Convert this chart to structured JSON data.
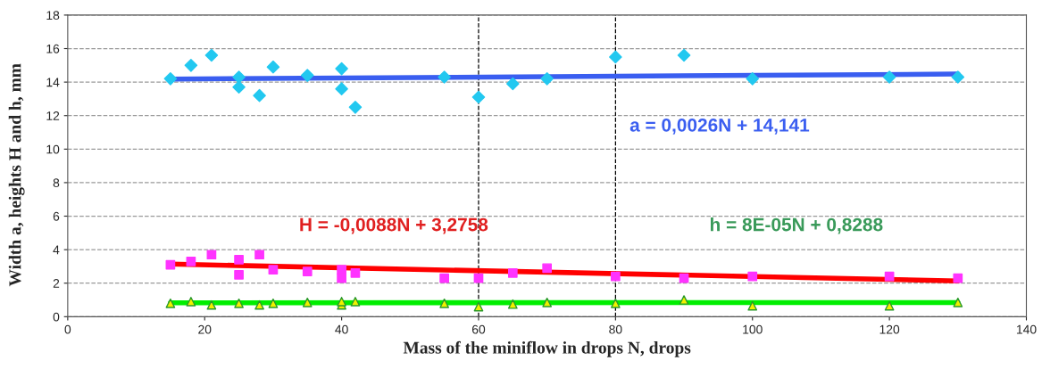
{
  "chart_data": {
    "type": "scatter",
    "xlabel": "Mass of the miniflow in drops N, drops",
    "ylabel": "Width a, heights H and h, mm",
    "xlim": [
      0,
      140
    ],
    "xticks": [
      0,
      20,
      40,
      60,
      80,
      100,
      120,
      140
    ],
    "ylim": [
      0,
      18
    ],
    "yticks": [
      0,
      2,
      4,
      6,
      8,
      10,
      12,
      14,
      16,
      18
    ],
    "grid": "y",
    "legend": false,
    "ref_lines": [
      {
        "axis": "x",
        "value": 60,
        "color": "#000000",
        "line_style": "dashed"
      },
      {
        "axis": "x",
        "value": 80,
        "color": "#000000",
        "line_style": "dashed"
      }
    ],
    "annotations": [
      "a = 0,0026N + 14,141",
      "H = -0,0088N + 3,2758",
      "h = 8E-05N + 0,8288"
    ],
    "series": [
      {
        "marker": "diamond",
        "color": "#22c8f0",
        "x": [
          15,
          18,
          21,
          25,
          25,
          28,
          30,
          35,
          40,
          40,
          42,
          55,
          60,
          65,
          70,
          80,
          90,
          100,
          120,
          130
        ],
        "values": [
          14.2,
          15.0,
          15.6,
          14.3,
          13.7,
          13.2,
          14.9,
          14.4,
          14.8,
          13.6,
          12.5,
          14.3,
          13.1,
          13.9,
          14.2,
          15.5,
          15.6,
          14.2,
          14.3,
          14.3
        ]
      },
      {
        "marker": "square",
        "color": "#ff33ff",
        "x": [
          15,
          18,
          21,
          25,
          25,
          28,
          30,
          35,
          40,
          40,
          42,
          55,
          60,
          65,
          70,
          80,
          90,
          100,
          120,
          130
        ],
        "values": [
          3.1,
          3.3,
          3.7,
          3.4,
          2.5,
          3.7,
          2.8,
          2.7,
          2.8,
          2.3,
          2.6,
          2.3,
          2.3,
          2.6,
          2.9,
          2.4,
          2.3,
          2.4,
          2.4,
          2.3
        ]
      },
      {
        "marker": "triangle",
        "color": "#f0f000",
        "x": [
          15,
          18,
          21,
          25,
          28,
          30,
          35,
          40,
          40,
          42,
          55,
          60,
          65,
          70,
          80,
          90,
          100,
          120,
          130
        ],
        "values": [
          0.8,
          0.9,
          0.7,
          0.8,
          0.7,
          0.8,
          0.85,
          0.7,
          0.9,
          0.9,
          0.8,
          0.6,
          0.75,
          0.85,
          0.8,
          1.0,
          0.65,
          0.65,
          0.85
        ]
      },
      {
        "type": "line",
        "color": "#3a5ef0",
        "x": [
          15,
          130
        ],
        "values": [
          14.18,
          14.48
        ]
      },
      {
        "type": "line",
        "color": "#ff0000",
        "x": [
          15,
          130
        ],
        "values": [
          3.14,
          2.13
        ]
      },
      {
        "type": "line",
        "color": "#00ee00",
        "x": [
          15,
          130
        ],
        "values": [
          0.83,
          0.84
        ]
      }
    ]
  }
}
